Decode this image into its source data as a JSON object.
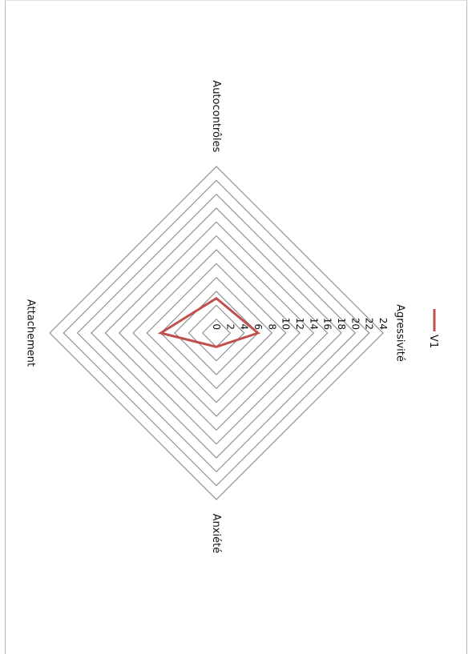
{
  "chart_data": {
    "type": "radar",
    "axes": [
      "Agressivité",
      "Anxiété",
      "Attachement",
      "Autocontrôles"
    ],
    "series": [
      {
        "name": "V1",
        "values": [
          6,
          2,
          8,
          5
        ]
      }
    ],
    "rlim": [
      0,
      24
    ],
    "ticks": [
      "0",
      "2",
      "4",
      "6",
      "8",
      "10",
      "12",
      "14",
      "16",
      "18",
      "20",
      "22",
      "24"
    ],
    "legend_position": "top",
    "rotated": "90deg clockwise",
    "colors": {
      "series": "#c0504d",
      "grid": "#7f7f7f"
    }
  }
}
